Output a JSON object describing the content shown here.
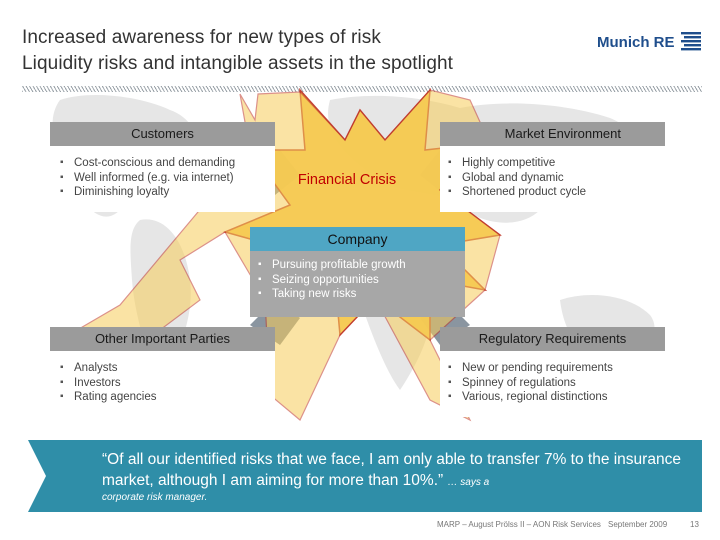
{
  "header": {
    "title_line1": "Increased awareness for new types of risk",
    "title_line2": "Liquidity risks and intangible assets in the spotlight",
    "logo_text": "Munich RE"
  },
  "center": {
    "label": "Financial Crisis"
  },
  "boxes": {
    "customers": {
      "title": "Customers",
      "items": [
        "Cost-conscious and demanding",
        "Well informed (e.g. via internet)",
        "Diminishing loyalty"
      ]
    },
    "market": {
      "title": "Market Environment",
      "items": [
        "Highly competitive",
        "Global and dynamic",
        "Shortened product cycle"
      ]
    },
    "company": {
      "title": "Company",
      "items": [
        "Pursuing profitable growth",
        "Seizing opportunities",
        "Taking new risks"
      ]
    },
    "other": {
      "title": "Other Important Parties",
      "items": [
        "Analysts",
        "Investors",
        "Rating agencies"
      ]
    },
    "regulatory": {
      "title": "Regulatory Requirements",
      "items": [
        "New or pending requirements",
        "Spinney of regulations",
        "Various, regional distinctions"
      ]
    }
  },
  "quote": {
    "text": "“Of all our identified risks that we face, I am only able to transfer 7% to the insurance market, although I am aiming for more than 10%.”",
    "says": "… says a",
    "tail": "corporate risk manager."
  },
  "footer": {
    "source": "MARP – August Prölss II – AON Risk Services",
    "date": "September 2009",
    "page": "13"
  },
  "colors": {
    "star_fill": "#f5c84a",
    "star_stroke": "#c0392b",
    "box_header": "#9b9b9b",
    "company_header": "#4fa6c4",
    "quote_bg": "#2f8ea8",
    "title_text": "#333333",
    "logo": "#1f4e8c",
    "crisis_text": "#c00000"
  }
}
